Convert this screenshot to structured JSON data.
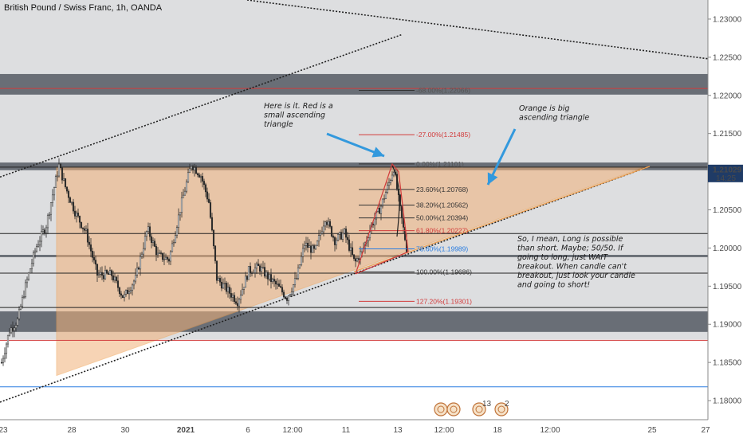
{
  "chart_data": {
    "type": "candlestick",
    "title": "British Pound / Swiss Franc, 1h, OANDA",
    "y_axis": {
      "range": [
        1.1775,
        1.2325
      ],
      "ticks": [
        "1.23000",
        "1.22500",
        "1.22000",
        "1.21500",
        "1.21000",
        "1.20500",
        "1.20000",
        "1.19500",
        "1.19000",
        "1.18500",
        "1.18000"
      ]
    },
    "x_axis": {
      "ticks": [
        "23",
        "28",
        "30",
        "2021",
        "6",
        "12:00",
        "11",
        "13",
        "12:00",
        "18",
        "12:00",
        "25",
        "27"
      ]
    },
    "current_price": {
      "value": "1.21029",
      "countdown": "14:25"
    },
    "horizontal_zones": [
      {
        "from": 1.2201,
        "to": 1.2228,
        "color": "#555a63"
      },
      {
        "from": 1.2102,
        "to": 1.2112,
        "color": "#555a63"
      },
      {
        "from": 1.1988,
        "to": 1.1991,
        "color": "#555a63"
      },
      {
        "from": 1.189,
        "to": 1.1917,
        "color": "#555a63"
      }
    ],
    "horizontal_lines": [
      {
        "value": 1.2209,
        "color": "#d23b3b"
      },
      {
        "value": 1.2106,
        "color": "#222222"
      },
      {
        "value": 1.2019,
        "color": "#222222"
      },
      {
        "value": 1.1967,
        "color": "#222222"
      },
      {
        "value": 1.1922,
        "color": "#222222"
      },
      {
        "value": 1.1879,
        "color": "#d23b3b"
      },
      {
        "value": 1.1818,
        "color": "#2a7de1"
      }
    ],
    "fibonacci": [
      {
        "label": "-68.00%(1.22066)",
        "value": 1.22066,
        "color": "#333333",
        "text_color": "#555555"
      },
      {
        "label": "-27.00%(1.21485)",
        "value": 1.21485,
        "color": "#d23b3b",
        "text_color": "#d23b3b"
      },
      {
        "label": "0.00%(1.21101)",
        "value": 1.21101,
        "color": "#333333",
        "text_color": "#555555"
      },
      {
        "label": "23.60%(1.20768)",
        "value": 1.20768,
        "color": "#333333",
        "text_color": "#333333"
      },
      {
        "label": "38.20%(1.20562)",
        "value": 1.20562,
        "color": "#333333",
        "text_color": "#333333"
      },
      {
        "label": "50.00%(1.20394)",
        "value": 1.20394,
        "color": "#333333",
        "text_color": "#333333"
      },
      {
        "label": "61.80%(1.20227)",
        "value": 1.20227,
        "color": "#d23b3b",
        "text_color": "#d23b3b"
      },
      {
        "label": "78.60%(1.19989)",
        "value": 1.19989,
        "color": "#2a7de1",
        "text_color": "#2a7de1"
      },
      {
        "label": "100.00%(1.19686)",
        "value": 1.19686,
        "color": "#333333",
        "text_color": "#333333"
      },
      {
        "label": "127.20%(1.19301)",
        "value": 1.19301,
        "color": "#d23b3b",
        "text_color": "#d23b3b"
      }
    ],
    "annotations": [
      {
        "id": "note-red-triangle",
        "lines": [
          "Here is it. Red is a",
          "small ascending",
          "triangle"
        ]
      },
      {
        "id": "note-orange-triangle",
        "lines": [
          "Orange is big",
          "ascending triangle"
        ]
      },
      {
        "id": "note-long-short",
        "lines": [
          "So, I mean, Long is possible",
          "than short. Maybe; 50/50. If",
          "going to long, just WAIT",
          "breakout. When candle can't",
          "breakout, just look your candle",
          "and going to short!"
        ]
      }
    ],
    "event_markers": [
      {
        "icon": "flag-icon",
        "count": ""
      },
      {
        "icon": "flag-icon",
        "count": ""
      },
      {
        "icon": "flag-icon",
        "count": "13"
      },
      {
        "icon": "flag-icon",
        "count": "2"
      }
    ],
    "colors": {
      "zone": "#555a63",
      "triangle_fill": "#f2b27a",
      "triangle_edge": "#f0a050",
      "arrow": "#3399dd",
      "candle": "#2b2b2b"
    }
  }
}
